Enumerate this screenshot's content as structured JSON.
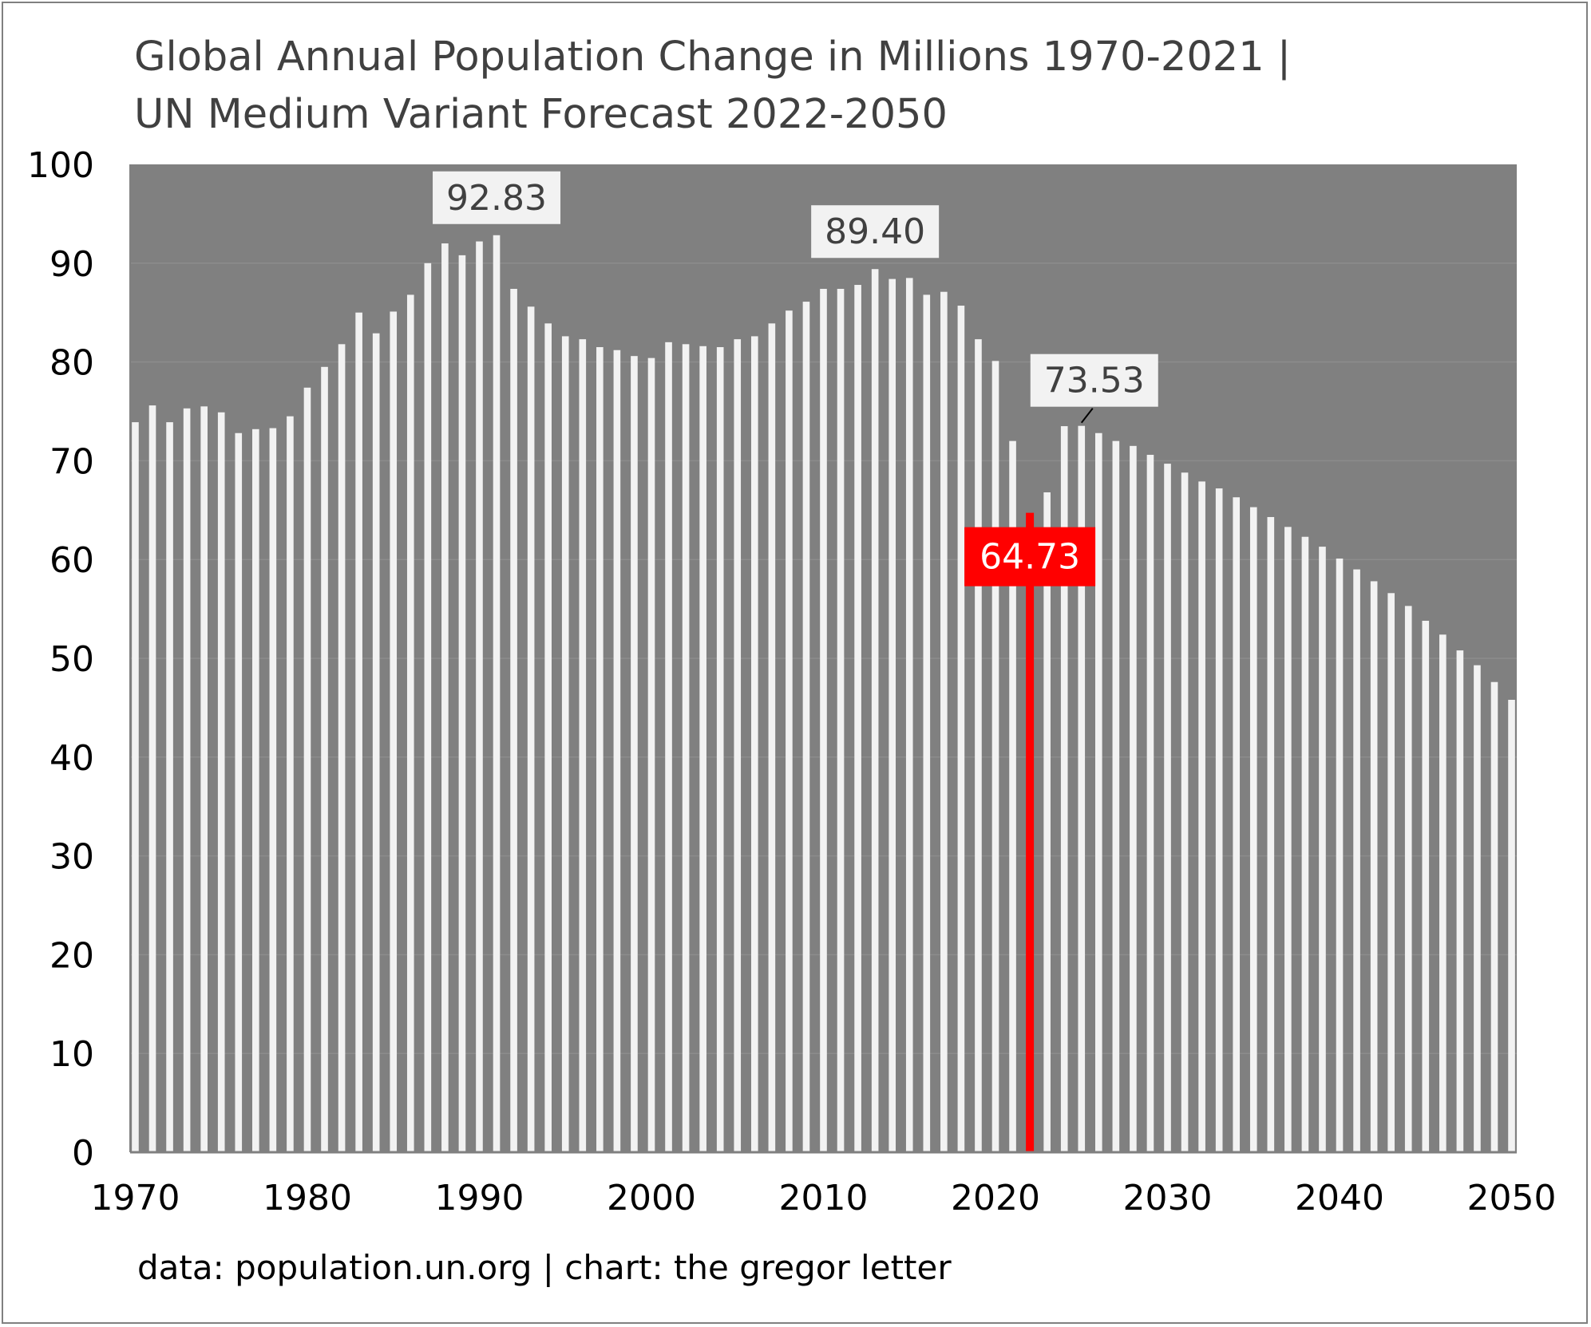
{
  "chart_data": {
    "type": "bar",
    "title_lines": [
      "Global Annual Population Change in Millions 1970-2021 |",
      "UN Medium Variant Forecast 2022-2050"
    ],
    "source": "data: population.un.org | chart: the gregor letter",
    "x": [
      1970,
      1971,
      1972,
      1973,
      1974,
      1975,
      1976,
      1977,
      1978,
      1979,
      1980,
      1981,
      1982,
      1983,
      1984,
      1985,
      1986,
      1987,
      1988,
      1989,
      1990,
      1991,
      1992,
      1993,
      1994,
      1995,
      1996,
      1997,
      1998,
      1999,
      2000,
      2001,
      2002,
      2003,
      2004,
      2005,
      2006,
      2007,
      2008,
      2009,
      2010,
      2011,
      2012,
      2013,
      2014,
      2015,
      2016,
      2017,
      2018,
      2019,
      2020,
      2021,
      2022,
      2023,
      2024,
      2025,
      2026,
      2027,
      2028,
      2029,
      2030,
      2031,
      2032,
      2033,
      2034,
      2035,
      2036,
      2037,
      2038,
      2039,
      2040,
      2041,
      2042,
      2043,
      2044,
      2045,
      2046,
      2047,
      2048,
      2049,
      2050
    ],
    "values": [
      73.9,
      75.6,
      73.9,
      75.3,
      75.5,
      74.9,
      72.8,
      73.2,
      73.3,
      74.5,
      77.4,
      79.5,
      81.8,
      85.0,
      82.9,
      85.1,
      86.8,
      90.0,
      92.0,
      90.8,
      92.2,
      92.83,
      87.4,
      85.6,
      83.9,
      82.6,
      82.3,
      81.5,
      81.2,
      80.6,
      80.4,
      82.0,
      81.8,
      81.6,
      81.5,
      82.3,
      82.6,
      83.9,
      85.2,
      86.1,
      87.4,
      87.4,
      87.8,
      89.4,
      88.4,
      88.5,
      86.8,
      87.1,
      85.7,
      82.3,
      80.1,
      72.0,
      64.73,
      66.8,
      73.5,
      73.53,
      72.8,
      72.0,
      71.5,
      70.6,
      69.7,
      68.8,
      67.9,
      67.2,
      66.3,
      65.3,
      64.3,
      63.3,
      62.3,
      61.3,
      60.1,
      59.0,
      57.8,
      56.6,
      55.3,
      53.8,
      52.4,
      50.8,
      49.3,
      47.6,
      45.8
    ],
    "highlight": {
      "x": 2022,
      "value": 64.73,
      "label": "64.73",
      "color": "#ff0000"
    },
    "annotations": [
      {
        "x": 1991,
        "label": "92.83"
      },
      {
        "x": 2013,
        "label": "89.40"
      },
      {
        "x": 2025,
        "label": "73.53"
      }
    ],
    "ylim": [
      0,
      100
    ],
    "yticks": [
      0,
      10,
      20,
      30,
      40,
      50,
      60,
      70,
      80,
      90,
      100
    ],
    "xticks": [
      1970,
      1980,
      1990,
      2000,
      2010,
      2020,
      2030,
      2040,
      2050
    ],
    "xlim": [
      1969.7,
      2050.3
    ],
    "grid": true,
    "legend": "none",
    "colors": {
      "plot_background": "#808080",
      "bar": "#f2f2f2",
      "highlight": "#ff0000",
      "label_box": "#f2f2f2",
      "label_text": "#404040",
      "title_text": "#404040",
      "grid": "#8c8c8c"
    }
  }
}
